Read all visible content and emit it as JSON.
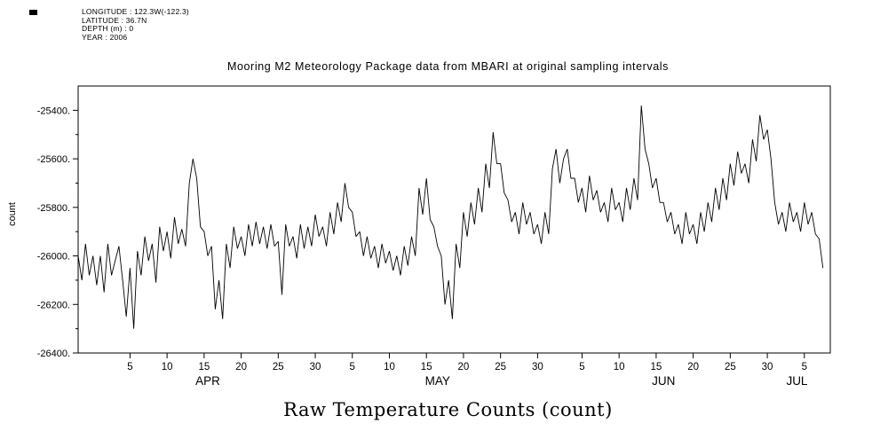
{
  "meta": {
    "lines": [
      "LONGITUDE : 122.3W(-122.3)",
      "LATITUDE : 36.7N",
      "DEPTH (m) : 0",
      "YEAR : 2006"
    ]
  },
  "title": "Mooring M2 Meteorology Package data from MBARI  at original sampling intervals",
  "footer_label": "Raw Temperature Counts (count)",
  "chart_data": {
    "type": "line",
    "title": "Mooring M2 Meteorology Package data from MBARI  at original sampling intervals",
    "ylabel": "count",
    "xlabel": "Raw Temperature Counts (count)",
    "line_color": "#000000",
    "background": "#ffffff",
    "grid": false,
    "legend": false,
    "ylim": [
      -26400,
      -25300
    ],
    "y_ticks": [
      -25400,
      -25600,
      -25800,
      -26000,
      -26200,
      -26400
    ],
    "y_tick_labels": [
      "-25400.",
      "-25600.",
      "-25800.",
      "-26000.",
      "-26200.",
      "-26400."
    ],
    "y_minor_step": 100,
    "xlim_days": [
      0,
      101.5
    ],
    "months": [
      {
        "label": "APR",
        "day_offset": 2,
        "tick_days": [
          5,
          10,
          15,
          20,
          25,
          30
        ],
        "label_day": 17.5
      },
      {
        "label": "MAY",
        "day_offset": 32,
        "tick_days": [
          5,
          10,
          15,
          20,
          25,
          30
        ],
        "label_day": 48.5
      },
      {
        "label": "JUN",
        "day_offset": 63,
        "tick_days": [
          5,
          10,
          15,
          20,
          25,
          30
        ],
        "label_day": 79
      },
      {
        "label": "JUL",
        "day_offset": 93,
        "tick_days": [
          5
        ],
        "label_day": 97
      }
    ],
    "series": [
      {
        "name": "raw temperature counts",
        "x0_day": 0,
        "dx_days": 0.5,
        "values": [
          -26000,
          -26100,
          -25950,
          -26080,
          -26000,
          -26120,
          -26000,
          -26150,
          -25950,
          -26080,
          -26020,
          -25960,
          -26100,
          -26250,
          -26050,
          -26300,
          -25980,
          -26080,
          -25920,
          -26020,
          -25950,
          -26110,
          -25880,
          -25980,
          -25900,
          -26010,
          -25840,
          -25950,
          -25890,
          -25960,
          -25700,
          -25600,
          -25680,
          -25880,
          -25900,
          -26000,
          -25960,
          -26220,
          -26100,
          -26260,
          -25950,
          -26050,
          -25880,
          -25970,
          -25920,
          -26000,
          -25870,
          -25960,
          -25860,
          -25950,
          -25880,
          -25970,
          -25870,
          -25960,
          -25940,
          -26160,
          -25870,
          -25960,
          -25920,
          -26010,
          -25870,
          -25970,
          -25880,
          -25960,
          -25830,
          -25920,
          -25880,
          -25960,
          -25820,
          -25910,
          -25780,
          -25860,
          -25700,
          -25800,
          -25820,
          -25920,
          -25900,
          -26000,
          -25920,
          -26010,
          -25960,
          -26050,
          -25950,
          -26030,
          -25980,
          -26060,
          -26000,
          -26080,
          -25960,
          -26040,
          -25920,
          -26000,
          -25720,
          -25830,
          -25680,
          -25850,
          -25880,
          -25960,
          -26000,
          -26200,
          -26100,
          -26260,
          -25950,
          -26050,
          -25820,
          -25920,
          -25780,
          -25870,
          -25720,
          -25820,
          -25620,
          -25720,
          -25490,
          -25620,
          -25620,
          -25740,
          -25770,
          -25860,
          -25820,
          -25910,
          -25780,
          -25870,
          -25820,
          -25910,
          -25870,
          -25950,
          -25820,
          -25910,
          -25640,
          -25560,
          -25700,
          -25600,
          -25560,
          -25680,
          -25680,
          -25780,
          -25720,
          -25820,
          -25670,
          -25770,
          -25730,
          -25820,
          -25780,
          -25860,
          -25720,
          -25810,
          -25780,
          -25860,
          -25720,
          -25810,
          -25680,
          -25770,
          -25380,
          -25560,
          -25620,
          -25720,
          -25680,
          -25780,
          -25780,
          -25860,
          -25820,
          -25910,
          -25870,
          -25950,
          -25820,
          -25910,
          -25870,
          -25950,
          -25820,
          -25900,
          -25780,
          -25860,
          -25720,
          -25810,
          -25680,
          -25770,
          -25620,
          -25710,
          -25570,
          -25660,
          -25620,
          -25700,
          -25520,
          -25610,
          -25420,
          -25520,
          -25480,
          -25600,
          -25780,
          -25870,
          -25820,
          -25900,
          -25780,
          -25860,
          -25820,
          -25900,
          -25780,
          -25870,
          -25820,
          -25910,
          -25930,
          -26050
        ]
      }
    ]
  }
}
